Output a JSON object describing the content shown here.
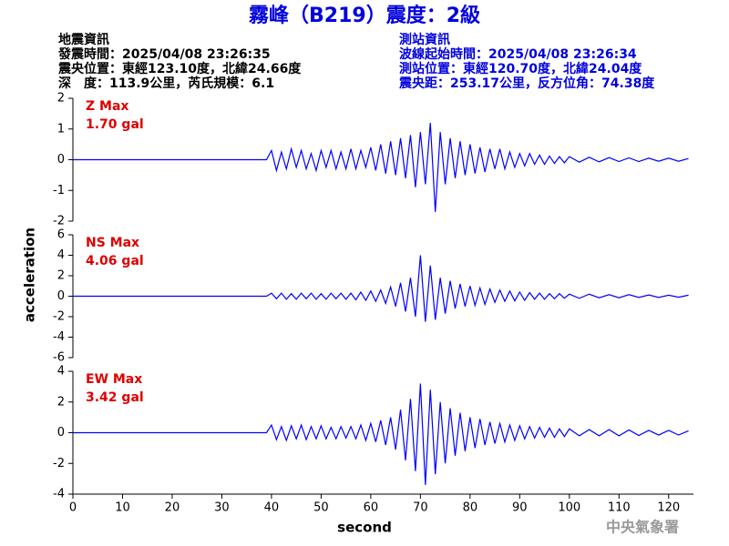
{
  "header": {
    "title": "霧峰（B219）震度：2級",
    "left": [
      "地震資訊",
      "發震時間：2025/04/08 23:26:35",
      "震央位置：東經123.10度，北緯24.66度",
      "深　度：113.9公里，芮氏規模：6.1"
    ],
    "right": [
      "測站資訊",
      "波線起始時間：2025/04/08 23:26:34",
      "測站位置：東經120.70度，北緯24.04度",
      "震央距：253.17公里，反方位角：74.38度"
    ]
  },
  "axes": {
    "y_label": "acceleration",
    "x_label": "second"
  },
  "footer": "中央氣象署",
  "chart_data": [
    {
      "type": "line",
      "annotations": [
        "Z Max",
        "1.70 gal"
      ],
      "xlim": [
        0,
        125
      ],
      "ylim": [
        -2,
        2
      ],
      "yticks": [
        -2,
        -1,
        0,
        1,
        2
      ],
      "x": [
        0,
        20,
        39,
        40,
        41,
        42,
        43,
        44,
        45,
        46,
        47,
        48,
        49,
        50,
        51,
        52,
        53,
        54,
        55,
        56,
        57,
        58,
        59,
        60,
        61,
        62,
        63,
        64,
        65,
        66,
        67,
        68,
        69,
        70,
        71,
        72,
        73,
        74,
        75,
        76,
        77,
        78,
        79,
        80,
        81,
        82,
        83,
        84,
        85,
        86,
        87,
        88,
        89,
        90,
        91,
        92,
        93,
        94,
        95,
        96,
        97,
        98,
        99,
        100,
        102,
        104,
        106,
        108,
        110,
        112,
        114,
        116,
        118,
        120,
        122,
        124
      ],
      "series": [
        {
          "color": "#0000ff",
          "values": [
            0,
            0,
            0,
            0.3,
            -0.35,
            0.25,
            -0.3,
            0.35,
            -0.25,
            0.3,
            -0.3,
            0.2,
            -0.35,
            0.3,
            -0.25,
            0.3,
            -0.3,
            0.25,
            -0.3,
            0.35,
            -0.3,
            0.3,
            -0.25,
            0.4,
            -0.35,
            0.5,
            -0.45,
            0.6,
            -0.5,
            0.7,
            -0.6,
            0.8,
            -0.9,
            0.9,
            -0.8,
            1.2,
            -1.7,
            0.9,
            -0.8,
            0.7,
            -0.6,
            0.6,
            -0.5,
            0.5,
            -0.45,
            0.4,
            -0.4,
            0.35,
            -0.3,
            0.35,
            -0.3,
            0.25,
            -0.25,
            0.2,
            -0.2,
            0.2,
            -0.15,
            0.15,
            -0.15,
            0.12,
            -0.12,
            0.1,
            -0.1,
            0.1,
            -0.08,
            0.08,
            -0.07,
            0.07,
            -0.06,
            0.06,
            -0.06,
            0.05,
            -0.05,
            0.05,
            -0.05,
            0.04
          ]
        }
      ]
    },
    {
      "type": "line",
      "annotations": [
        "NS Max",
        "4.06 gal"
      ],
      "xlim": [
        0,
        125
      ],
      "ylim": [
        -6,
        6
      ],
      "yticks": [
        -6,
        -4,
        -2,
        0,
        2,
        4,
        6
      ],
      "x": [
        0,
        20,
        39,
        40,
        41,
        42,
        43,
        44,
        45,
        46,
        47,
        48,
        49,
        50,
        51,
        52,
        53,
        54,
        55,
        56,
        57,
        58,
        59,
        60,
        61,
        62,
        63,
        64,
        65,
        66,
        67,
        68,
        69,
        70,
        71,
        72,
        73,
        74,
        75,
        76,
        77,
        78,
        79,
        80,
        81,
        82,
        83,
        84,
        85,
        86,
        87,
        88,
        89,
        90,
        91,
        92,
        93,
        94,
        95,
        96,
        97,
        98,
        99,
        100,
        102,
        104,
        106,
        108,
        110,
        112,
        114,
        116,
        118,
        120,
        122,
        124
      ],
      "series": [
        {
          "color": "#0000ff",
          "values": [
            0,
            0,
            0,
            0.3,
            -0.25,
            0.3,
            -0.3,
            0.25,
            -0.3,
            0.3,
            -0.25,
            0.3,
            -0.3,
            0.25,
            -0.3,
            0.3,
            -0.25,
            0.3,
            -0.3,
            0.3,
            -0.35,
            0.4,
            -0.4,
            0.5,
            -0.5,
            0.6,
            -0.7,
            0.9,
            -1.0,
            1.3,
            -1.5,
            1.8,
            -2.0,
            4.0,
            -2.5,
            3.0,
            -2.3,
            1.8,
            -1.7,
            1.5,
            -1.2,
            1.2,
            -1.0,
            1.0,
            -0.9,
            0.8,
            -0.8,
            0.7,
            -0.6,
            0.6,
            -0.5,
            0.5,
            -0.45,
            0.4,
            -0.4,
            0.35,
            -0.3,
            0.3,
            -0.3,
            0.25,
            -0.25,
            0.25,
            -0.2,
            0.2,
            -0.2,
            0.2,
            -0.15,
            0.15,
            -0.15,
            0.15,
            -0.12,
            0.12,
            -0.12,
            0.1,
            -0.1,
            0.1
          ]
        }
      ]
    },
    {
      "type": "line",
      "annotations": [
        "EW Max",
        "3.42 gal"
      ],
      "xlim": [
        0,
        125
      ],
      "ylim": [
        -4,
        4
      ],
      "yticks": [
        -4,
        -2,
        0,
        2,
        4
      ],
      "xticks": [
        0,
        10,
        20,
        30,
        40,
        50,
        60,
        70,
        80,
        90,
        100,
        110,
        120
      ],
      "x": [
        0,
        20,
        39,
        40,
        41,
        42,
        43,
        44,
        45,
        46,
        47,
        48,
        49,
        50,
        51,
        52,
        53,
        54,
        55,
        56,
        57,
        58,
        59,
        60,
        61,
        62,
        63,
        64,
        65,
        66,
        67,
        68,
        69,
        70,
        71,
        72,
        73,
        74,
        75,
        76,
        77,
        78,
        79,
        80,
        81,
        82,
        83,
        84,
        85,
        86,
        87,
        88,
        89,
        90,
        91,
        92,
        93,
        94,
        95,
        96,
        97,
        98,
        99,
        100,
        102,
        104,
        106,
        108,
        110,
        112,
        114,
        116,
        118,
        120,
        122,
        124
      ],
      "series": [
        {
          "color": "#0000ff",
          "values": [
            0,
            0,
            0,
            0.5,
            -0.45,
            0.4,
            -0.5,
            0.45,
            -0.4,
            0.5,
            -0.45,
            0.4,
            -0.4,
            0.45,
            -0.4,
            0.35,
            -0.4,
            0.4,
            -0.35,
            0.4,
            -0.4,
            0.5,
            -0.5,
            0.6,
            -0.6,
            0.8,
            -0.8,
            1.0,
            -1.1,
            1.5,
            -1.8,
            2.2,
            -2.5,
            3.2,
            -3.4,
            2.8,
            -2.7,
            2.0,
            -2.0,
            1.6,
            -1.5,
            1.3,
            -1.2,
            1.0,
            -1.0,
            0.9,
            -0.8,
            0.7,
            -0.7,
            0.6,
            -0.6,
            0.5,
            -0.5,
            0.45,
            -0.4,
            0.4,
            -0.35,
            0.35,
            -0.3,
            0.3,
            -0.3,
            0.25,
            -0.25,
            0.25,
            -0.2,
            0.2,
            -0.2,
            0.2,
            -0.2,
            0.18,
            -0.18,
            0.15,
            -0.15,
            0.15,
            -0.15,
            0.12
          ]
        }
      ]
    }
  ]
}
